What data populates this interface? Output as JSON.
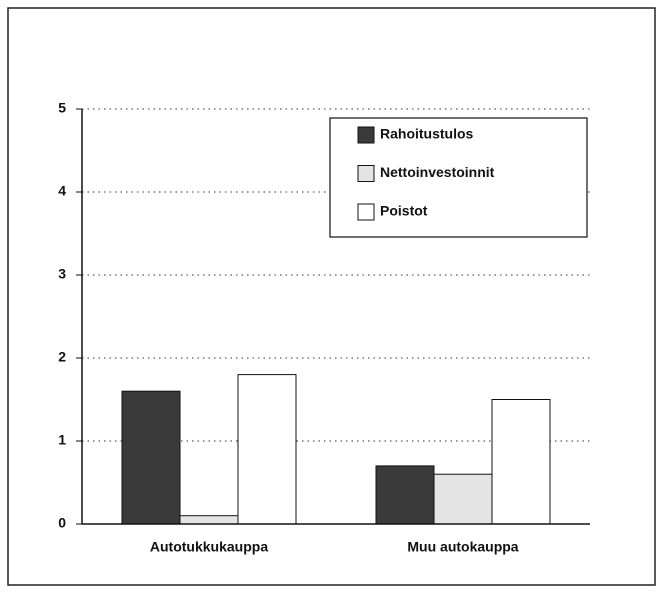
{
  "chart_data": {
    "type": "bar",
    "categories": [
      "Autotukkukauppa",
      "Muu autokauppa"
    ],
    "series": [
      {
        "name": "Rahoitustulos",
        "color": "#3a3a3a",
        "values": [
          1.6,
          0.7
        ]
      },
      {
        "name": "Nettoinvestoinnit",
        "color": "#e4e4e4",
        "values": [
          0.1,
          0.6
        ]
      },
      {
        "name": "Poistot",
        "color": "#ffffff",
        "values": [
          1.8,
          1.5
        ]
      }
    ],
    "ylim": [
      0,
      5
    ],
    "yticks": [
      0,
      1,
      2,
      3,
      4,
      5
    ],
    "grid": true,
    "legend": "upper right"
  }
}
